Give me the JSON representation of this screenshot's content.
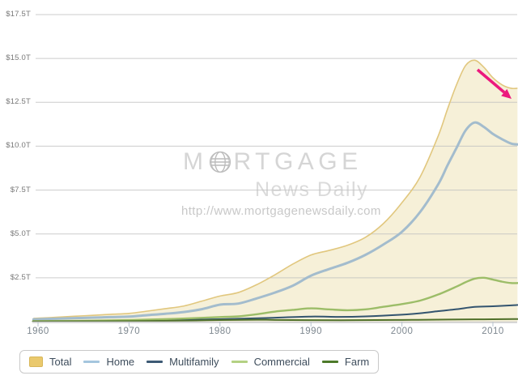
{
  "watermark": {
    "brand_first_letter": "M",
    "brand_rest": "RTGAGE",
    "subtitle": "News Daily",
    "url": "http://www.mortgagenewsdaily.com",
    "color": "#d5d5d5"
  },
  "chart_data": {
    "type": "area",
    "title": "",
    "xlabel": "",
    "ylabel": "",
    "x_range": [
      1959.5,
      2012.7
    ],
    "ylim": [
      0,
      18.4
    ],
    "grid": "horizontal",
    "legend_position": "bottom",
    "y_ticks": [
      {
        "label": "$17.5T",
        "value": 17.5
      },
      {
        "label": "$15.0T",
        "value": 15.0
      },
      {
        "label": "$12.5T",
        "value": 12.5
      },
      {
        "label": "$10.0T",
        "value": 10.0
      },
      {
        "label": "$7.5T",
        "value": 7.5
      },
      {
        "label": "$5.0T",
        "value": 5.0
      },
      {
        "label": "$2.5T",
        "value": 2.5
      }
    ],
    "x_ticks": [
      {
        "label": "1960",
        "value": 1960
      },
      {
        "label": "1970",
        "value": 1970
      },
      {
        "label": "1980",
        "value": 1980
      },
      {
        "label": "1990",
        "value": 1990
      },
      {
        "label": "2000",
        "value": 2000
      },
      {
        "label": "2010",
        "value": 2010
      }
    ],
    "series": [
      {
        "name": "Total",
        "type": "area",
        "units": "trillions USD",
        "fill": "#f6f0d8",
        "color": "#e1c77e",
        "width": 1.6,
        "legend_color": "#eac96d",
        "legend_border": "#d8b75a",
        "points": [
          [
            1959.5,
            0.19
          ],
          [
            1960,
            0.2
          ],
          [
            1962,
            0.25
          ],
          [
            1964,
            0.31
          ],
          [
            1966,
            0.36
          ],
          [
            1968,
            0.42
          ],
          [
            1970,
            0.47
          ],
          [
            1972,
            0.6
          ],
          [
            1974,
            0.74
          ],
          [
            1976,
            0.89
          ],
          [
            1978,
            1.17
          ],
          [
            1980,
            1.46
          ],
          [
            1982,
            1.66
          ],
          [
            1984,
            2.1
          ],
          [
            1986,
            2.66
          ],
          [
            1988,
            3.28
          ],
          [
            1990,
            3.8
          ],
          [
            1992,
            4.06
          ],
          [
            1994,
            4.35
          ],
          [
            1996,
            4.81
          ],
          [
            1998,
            5.61
          ],
          [
            2000,
            6.78
          ],
          [
            2002,
            8.25
          ],
          [
            2004,
            10.6
          ],
          [
            2005,
            12.1
          ],
          [
            2006,
            13.5
          ],
          [
            2007,
            14.6
          ],
          [
            2008,
            14.9
          ],
          [
            2009,
            14.5
          ],
          [
            2010,
            13.9
          ],
          [
            2011,
            13.5
          ],
          [
            2012,
            13.3
          ],
          [
            2012.7,
            13.3
          ]
        ]
      },
      {
        "name": "Home",
        "type": "line",
        "units": "trillions USD",
        "color": "#a3bccd",
        "width": 3,
        "legend_color": "#a5c6de",
        "points": [
          [
            1959.5,
            0.13
          ],
          [
            1960,
            0.14
          ],
          [
            1962,
            0.17
          ],
          [
            1964,
            0.2
          ],
          [
            1966,
            0.23
          ],
          [
            1968,
            0.26
          ],
          [
            1970,
            0.29
          ],
          [
            1972,
            0.37
          ],
          [
            1974,
            0.45
          ],
          [
            1976,
            0.55
          ],
          [
            1978,
            0.71
          ],
          [
            1980,
            0.97
          ],
          [
            1982,
            1.03
          ],
          [
            1984,
            1.32
          ],
          [
            1986,
            1.65
          ],
          [
            1988,
            2.05
          ],
          [
            1990,
            2.62
          ],
          [
            1992,
            3.0
          ],
          [
            1994,
            3.35
          ],
          [
            1996,
            3.81
          ],
          [
            1998,
            4.41
          ],
          [
            2000,
            5.12
          ],
          [
            2002,
            6.25
          ],
          [
            2004,
            7.84
          ],
          [
            2005,
            8.9
          ],
          [
            2006,
            9.9
          ],
          [
            2007,
            10.9
          ],
          [
            2008,
            11.35
          ],
          [
            2009,
            11.1
          ],
          [
            2010,
            10.7
          ],
          [
            2011,
            10.4
          ],
          [
            2012,
            10.15
          ],
          [
            2012.7,
            10.1
          ]
        ]
      },
      {
        "name": "Multifamily",
        "type": "line",
        "units": "trillions USD",
        "color": "#33546f",
        "width": 2,
        "legend_color": "#3d5a75",
        "points": [
          [
            1959.5,
            0.02
          ],
          [
            1960,
            0.02
          ],
          [
            1965,
            0.04
          ],
          [
            1970,
            0.06
          ],
          [
            1975,
            0.1
          ],
          [
            1980,
            0.14
          ],
          [
            1985,
            0.21
          ],
          [
            1990,
            0.29
          ],
          [
            1993,
            0.27
          ],
          [
            1996,
            0.3
          ],
          [
            2000,
            0.4
          ],
          [
            2002,
            0.48
          ],
          [
            2004,
            0.6
          ],
          [
            2006,
            0.71
          ],
          [
            2008,
            0.84
          ],
          [
            2010,
            0.88
          ],
          [
            2012,
            0.93
          ],
          [
            2012.7,
            0.95
          ]
        ]
      },
      {
        "name": "Commercial",
        "type": "line",
        "units": "trillions USD",
        "color": "#9cbd68",
        "width": 2.4,
        "legend_color": "#b4d183",
        "points": [
          [
            1959.5,
            0.03
          ],
          [
            1960,
            0.03
          ],
          [
            1965,
            0.05
          ],
          [
            1970,
            0.09
          ],
          [
            1975,
            0.16
          ],
          [
            1980,
            0.26
          ],
          [
            1982,
            0.3
          ],
          [
            1984,
            0.42
          ],
          [
            1986,
            0.57
          ],
          [
            1988,
            0.67
          ],
          [
            1990,
            0.76
          ],
          [
            1992,
            0.7
          ],
          [
            1994,
            0.65
          ],
          [
            1996,
            0.7
          ],
          [
            1998,
            0.85
          ],
          [
            2000,
            1.0
          ],
          [
            2002,
            1.2
          ],
          [
            2004,
            1.55
          ],
          [
            2006,
            2.0
          ],
          [
            2007,
            2.25
          ],
          [
            2008,
            2.45
          ],
          [
            2009,
            2.5
          ],
          [
            2010,
            2.4
          ],
          [
            2011,
            2.28
          ],
          [
            2012,
            2.2
          ],
          [
            2012.7,
            2.2
          ]
        ]
      },
      {
        "name": "Farm",
        "type": "line",
        "units": "trillions USD",
        "color": "#50702a",
        "width": 2,
        "legend_color": "#4d7a2a",
        "points": [
          [
            1959.5,
            0.012
          ],
          [
            1960,
            0.013
          ],
          [
            1965,
            0.021
          ],
          [
            1970,
            0.03
          ],
          [
            1975,
            0.05
          ],
          [
            1980,
            0.092
          ],
          [
            1984,
            0.112
          ],
          [
            1986,
            0.1
          ],
          [
            1990,
            0.084
          ],
          [
            1995,
            0.085
          ],
          [
            2000,
            0.1
          ],
          [
            2005,
            0.12
          ],
          [
            2008,
            0.13
          ],
          [
            2010,
            0.14
          ],
          [
            2012.7,
            0.15
          ]
        ]
      }
    ],
    "annotation": {
      "type": "arrow",
      "color": "#ec1a7d"
    }
  }
}
